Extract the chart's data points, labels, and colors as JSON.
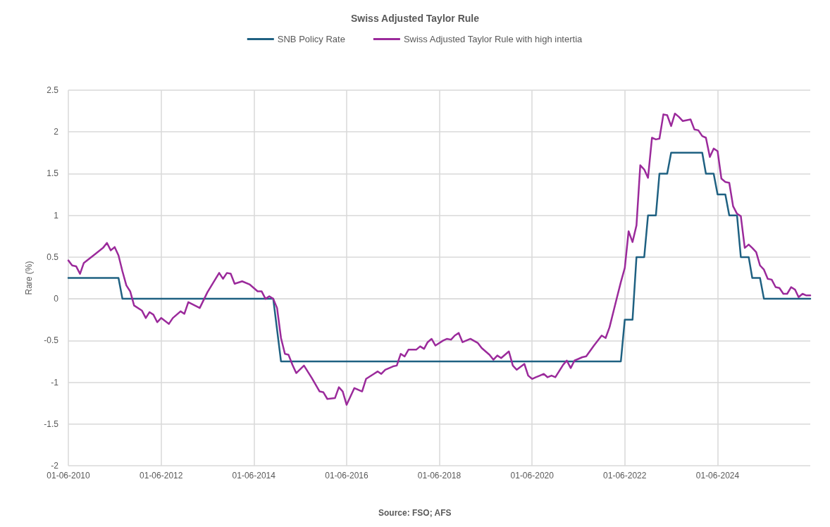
{
  "chart_data": {
    "type": "line",
    "title": "Swiss Adjusted Taylor Rule",
    "ylabel": "Rare (%)",
    "annotations": [
      "Source: FSO; AFS"
    ],
    "xlim": [
      "2010-06",
      "2026-06"
    ],
    "xticks": [
      {
        "value": "2010-06",
        "label": "01-06-2010"
      },
      {
        "value": "2012-06",
        "label": "01-06-2012"
      },
      {
        "value": "2014-06",
        "label": "01-06-2014"
      },
      {
        "value": "2016-06",
        "label": "01-06-2016"
      },
      {
        "value": "2018-06",
        "label": "01-06-2018"
      },
      {
        "value": "2020-06",
        "label": "01-06-2020"
      },
      {
        "value": "2022-06",
        "label": "01-06-2022"
      },
      {
        "value": "2024-06",
        "label": "01-06-2024"
      }
    ],
    "ylim": [
      -2,
      2.5
    ],
    "yticks": [
      -2,
      -1.5,
      -1,
      -0.5,
      0,
      0.5,
      1,
      1.5,
      2,
      2.5
    ],
    "grid": true,
    "legend": "top",
    "marker": "none",
    "line_style": "solid",
    "series": [
      {
        "name": "SNB Policy Rate",
        "color": "#1f6182",
        "x": [
          "2010-06",
          "2011-07",
          "2011-08",
          "2014-11",
          "2015-01",
          "2022-05",
          "2022-06",
          "2022-08",
          "2022-09",
          "2022-11",
          "2022-12",
          "2023-02",
          "2023-03",
          "2023-05",
          "2023-06",
          "2024-02",
          "2024-03",
          "2024-05",
          "2024-06",
          "2024-08",
          "2024-09",
          "2024-11",
          "2024-12",
          "2025-02",
          "2025-03",
          "2025-05",
          "2025-06",
          "2026-06"
        ],
        "values": [
          0.25,
          0.25,
          0,
          0,
          -0.75,
          -0.75,
          -0.25,
          -0.25,
          0.5,
          0.5,
          1,
          1,
          1.5,
          1.5,
          1.75,
          1.75,
          1.5,
          1.5,
          1.25,
          1.25,
          1,
          1,
          0.5,
          0.5,
          0.25,
          0.25,
          0,
          0
        ]
      },
      {
        "name": "Swiss Adjusted Taylor Rule with high intertia",
        "color": "#9b2a9b",
        "x": [
          "2010-06",
          "2010-07",
          "2010-08",
          "2010-09",
          "2010-10",
          "2011-01",
          "2011-03",
          "2011-04",
          "2011-05",
          "2011-06",
          "2011-07",
          "2011-08",
          "2011-09",
          "2011-10",
          "2011-11",
          "2012-01",
          "2012-02",
          "2012-03",
          "2012-04",
          "2012-05",
          "2012-06",
          "2012-08",
          "2012-09",
          "2012-11",
          "2012-12",
          "2013-01",
          "2013-04",
          "2013-06",
          "2013-09",
          "2013-10",
          "2013-11",
          "2013-12",
          "2014-01",
          "2014-03",
          "2014-05",
          "2014-07",
          "2014-08",
          "2014-09",
          "2014-10",
          "2014-11",
          "2014-12",
          "2015-01",
          "2015-02",
          "2015-03",
          "2015-04",
          "2015-05",
          "2015-07",
          "2015-09",
          "2015-11",
          "2015-12",
          "2016-01",
          "2016-03",
          "2016-04",
          "2016-05",
          "2016-06",
          "2016-08",
          "2016-10",
          "2016-11",
          "2017-01",
          "2017-02",
          "2017-03",
          "2017-04",
          "2017-06",
          "2017-07",
          "2017-08",
          "2017-09",
          "2017-10",
          "2017-12",
          "2018-01",
          "2018-02",
          "2018-03",
          "2018-04",
          "2018-05",
          "2018-07",
          "2018-08",
          "2018-09",
          "2018-10",
          "2018-11",
          "2018-12",
          "2019-02",
          "2019-04",
          "2019-05",
          "2019-07",
          "2019-08",
          "2019-09",
          "2019-10",
          "2019-12",
          "2020-01",
          "2020-02",
          "2020-04",
          "2020-05",
          "2020-06",
          "2020-07",
          "2020-08",
          "2020-09",
          "2020-10",
          "2020-11",
          "2020-12",
          "2021-02",
          "2021-03",
          "2021-04",
          "2021-05",
          "2021-07",
          "2021-08",
          "2021-10",
          "2021-12",
          "2022-01",
          "2022-02",
          "2022-04",
          "2022-05",
          "2022-06",
          "2022-07",
          "2022-08",
          "2022-09",
          "2022-10",
          "2022-11",
          "2022-12",
          "2023-01",
          "2023-02",
          "2023-03",
          "2023-04",
          "2023-05",
          "2023-06",
          "2023-07",
          "2023-08",
          "2023-09",
          "2023-11",
          "2023-12",
          "2024-01",
          "2024-02",
          "2024-03",
          "2024-04",
          "2024-05",
          "2024-06",
          "2024-07",
          "2024-08",
          "2024-09",
          "2024-10",
          "2024-11",
          "2024-12",
          "2025-01",
          "2025-02",
          "2025-03",
          "2025-04",
          "2025-05",
          "2025-06",
          "2025-07",
          "2025-08",
          "2025-09",
          "2025-10",
          "2025-11",
          "2025-12",
          "2026-01",
          "2026-02",
          "2026-03",
          "2026-04",
          "2026-05",
          "2026-06"
        ],
        "values": [
          0.46,
          0.4,
          0.39,
          0.3,
          0.43,
          0.54,
          0.61,
          0.67,
          0.58,
          0.62,
          0.52,
          0.33,
          0.16,
          0.09,
          -0.08,
          -0.14,
          -0.23,
          -0.16,
          -0.19,
          -0.28,
          -0.23,
          -0.3,
          -0.23,
          -0.15,
          -0.18,
          -0.04,
          -0.11,
          0.08,
          0.31,
          0.24,
          0.31,
          0.3,
          0.18,
          0.21,
          0.17,
          0.09,
          0.09,
          0,
          0.03,
          0,
          -0.11,
          -0.47,
          -0.66,
          -0.67,
          -0.79,
          -0.89,
          -0.8,
          -0.95,
          -1.11,
          -1.12,
          -1.2,
          -1.19,
          -1.06,
          -1.11,
          -1.27,
          -1.07,
          -1.11,
          -0.96,
          -0.9,
          -0.87,
          -0.9,
          -0.85,
          -0.81,
          -0.8,
          -0.66,
          -0.69,
          -0.61,
          -0.61,
          -0.57,
          -0.6,
          -0.52,
          -0.48,
          -0.56,
          -0.5,
          -0.48,
          -0.49,
          -0.44,
          -0.41,
          -0.52,
          -0.48,
          -0.53,
          -0.59,
          -0.67,
          -0.73,
          -0.68,
          -0.71,
          -0.63,
          -0.8,
          -0.85,
          -0.78,
          -0.92,
          -0.96,
          -0.94,
          -0.92,
          -0.9,
          -0.94,
          -0.92,
          -0.94,
          -0.79,
          -0.74,
          -0.83,
          -0.74,
          -0.7,
          -0.69,
          -0.56,
          -0.44,
          -0.47,
          -0.34,
          0.02,
          0.2,
          0.37,
          0.81,
          0.68,
          0.88,
          1.6,
          1.55,
          1.45,
          1.93,
          1.91,
          1.92,
          2.21,
          2.2,
          2.07,
          2.22,
          2.18,
          2.13,
          2.15,
          2.03,
          2.02,
          1.95,
          1.93,
          1.7,
          1.8,
          1.77,
          1.44,
          1.4,
          1.39,
          1.11,
          1.02,
          0.99,
          0.61,
          0.65,
          0.61,
          0.56,
          0.4,
          0.35,
          0.24,
          0.23,
          0.14,
          0.13,
          0.06,
          0.06,
          0.14,
          0.11,
          0.02,
          0.06,
          0.04,
          0.04
        ]
      }
    ]
  }
}
